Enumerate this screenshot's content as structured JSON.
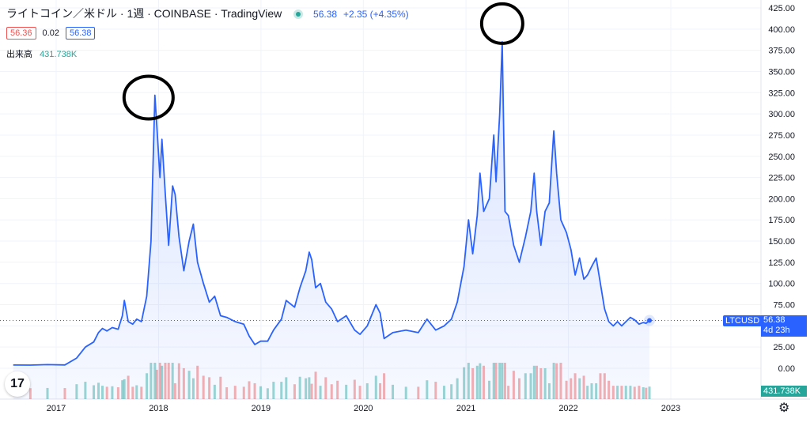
{
  "header": {
    "symbol_title": "ライトコイン／米ドル · 1週 · COINBASE · TradingView",
    "last_price": "56.38",
    "change": "+2.35 (+4.35%)"
  },
  "quote": {
    "bid": "56.36",
    "spread": "0.02",
    "ask": "56.38"
  },
  "volume_legend": {
    "label": "出来高",
    "value": "431.738K"
  },
  "price_tag": {
    "symbol": "LTCUSD",
    "price": "56.38",
    "countdown": "4d 23h"
  },
  "volume_tag": "431.738K",
  "icons": {
    "logo": "tradingview-logo-icon",
    "settings": "gear-icon",
    "live": "live-dot-icon"
  },
  "colors": {
    "line": "#2962ff",
    "area": "#e8edfb",
    "up": "#26a69a",
    "down": "#ef5350"
  },
  "chart_data": {
    "type": "area",
    "title": "",
    "xlabel": "",
    "ylabel": "",
    "x_tick_labels": [
      "2017",
      "2018",
      "2019",
      "2020",
      "2021",
      "2022",
      "2023"
    ],
    "y_tick_labels": [
      "0.00",
      "25.00",
      "50.00",
      "75.00",
      "100.00",
      "125.00",
      "150.00",
      "175.00",
      "200.00",
      "225.00",
      "250.00",
      "275.00",
      "300.00",
      "325.00",
      "350.00",
      "375.00",
      "400.00",
      "425.00"
    ],
    "ylim": [
      -5,
      430
    ],
    "grid": true,
    "series": [
      {
        "name": "LTCUSD",
        "points": [
          [
            "2016-08-01",
            3.8
          ],
          [
            "2016-10-01",
            3.7
          ],
          [
            "2016-12-01",
            4.3
          ],
          [
            "2017-02-01",
            3.9
          ],
          [
            "2017-03-15",
            12
          ],
          [
            "2017-04-15",
            25
          ],
          [
            "2017-05-15",
            31
          ],
          [
            "2017-06-01",
            42
          ],
          [
            "2017-06-15",
            47
          ],
          [
            "2017-07-01",
            44
          ],
          [
            "2017-07-20",
            48
          ],
          [
            "2017-08-10",
            46
          ],
          [
            "2017-08-25",
            62
          ],
          [
            "2017-09-01",
            80
          ],
          [
            "2017-09-15",
            55
          ],
          [
            "2017-10-01",
            52
          ],
          [
            "2017-10-15",
            58
          ],
          [
            "2017-11-01",
            55
          ],
          [
            "2017-11-20",
            85
          ],
          [
            "2017-12-05",
            150
          ],
          [
            "2017-12-19",
            322
          ],
          [
            "2017-12-26",
            285
          ],
          [
            "2018-01-06",
            225
          ],
          [
            "2018-01-13",
            270
          ],
          [
            "2018-01-25",
            205
          ],
          [
            "2018-02-06",
            145
          ],
          [
            "2018-02-20",
            215
          ],
          [
            "2018-03-01",
            205
          ],
          [
            "2018-03-15",
            155
          ],
          [
            "2018-04-01",
            115
          ],
          [
            "2018-04-20",
            150
          ],
          [
            "2018-05-05",
            170
          ],
          [
            "2018-05-20",
            125
          ],
          [
            "2018-06-10",
            100
          ],
          [
            "2018-07-01",
            78
          ],
          [
            "2018-07-20",
            85
          ],
          [
            "2018-08-10",
            62
          ],
          [
            "2018-09-01",
            60
          ],
          [
            "2018-10-01",
            55
          ],
          [
            "2018-11-01",
            52
          ],
          [
            "2018-11-20",
            38
          ],
          [
            "2018-12-10",
            28
          ],
          [
            "2018-12-31",
            32
          ],
          [
            "2019-01-25",
            32
          ],
          [
            "2019-02-15",
            45
          ],
          [
            "2019-03-15",
            58
          ],
          [
            "2019-04-01",
            80
          ],
          [
            "2019-05-01",
            72
          ],
          [
            "2019-05-20",
            95
          ],
          [
            "2019-06-10",
            115
          ],
          [
            "2019-06-22",
            137
          ],
          [
            "2019-07-01",
            128
          ],
          [
            "2019-07-15",
            95
          ],
          [
            "2019-08-01",
            100
          ],
          [
            "2019-08-20",
            78
          ],
          [
            "2019-09-10",
            70
          ],
          [
            "2019-10-01",
            55
          ],
          [
            "2019-11-01",
            62
          ],
          [
            "2019-12-01",
            45
          ],
          [
            "2019-12-20",
            40
          ],
          [
            "2020-01-15",
            50
          ],
          [
            "2020-02-15",
            75
          ],
          [
            "2020-03-01",
            65
          ],
          [
            "2020-03-15",
            35
          ],
          [
            "2020-04-15",
            42
          ],
          [
            "2020-06-01",
            45
          ],
          [
            "2020-07-15",
            42
          ],
          [
            "2020-08-15",
            58
          ],
          [
            "2020-09-15",
            45
          ],
          [
            "2020-10-15",
            50
          ],
          [
            "2020-11-10",
            58
          ],
          [
            "2020-12-01",
            78
          ],
          [
            "2020-12-25",
            120
          ],
          [
            "2021-01-10",
            175
          ],
          [
            "2021-01-25",
            135
          ],
          [
            "2021-02-10",
            180
          ],
          [
            "2021-02-20",
            230
          ],
          [
            "2021-03-05",
            185
          ],
          [
            "2021-03-25",
            200
          ],
          [
            "2021-04-10",
            275
          ],
          [
            "2021-04-18",
            220
          ],
          [
            "2021-05-01",
            300
          ],
          [
            "2021-05-10",
            385
          ],
          [
            "2021-05-20",
            185
          ],
          [
            "2021-06-01",
            180
          ],
          [
            "2021-06-20",
            145
          ],
          [
            "2021-07-10",
            125
          ],
          [
            "2021-08-01",
            155
          ],
          [
            "2021-08-20",
            185
          ],
          [
            "2021-09-01",
            230
          ],
          [
            "2021-09-10",
            185
          ],
          [
            "2021-09-25",
            145
          ],
          [
            "2021-10-10",
            185
          ],
          [
            "2021-10-25",
            195
          ],
          [
            "2021-11-10",
            280
          ],
          [
            "2021-11-20",
            230
          ],
          [
            "2021-12-05",
            175
          ],
          [
            "2021-12-25",
            160
          ],
          [
            "2022-01-10",
            140
          ],
          [
            "2022-01-25",
            110
          ],
          [
            "2022-02-10",
            130
          ],
          [
            "2022-02-25",
            105
          ],
          [
            "2022-03-10",
            110
          ],
          [
            "2022-03-25",
            120
          ],
          [
            "2022-04-10",
            130
          ],
          [
            "2022-04-25",
            100
          ],
          [
            "2022-05-10",
            70
          ],
          [
            "2022-05-25",
            55
          ],
          [
            "2022-06-10",
            50
          ],
          [
            "2022-06-25",
            55
          ],
          [
            "2022-07-10",
            50
          ],
          [
            "2022-07-25",
            55
          ],
          [
            "2022-08-10",
            60
          ],
          [
            "2022-08-25",
            57
          ],
          [
            "2022-09-10",
            52
          ],
          [
            "2022-09-25",
            54
          ],
          [
            "2022-10-05",
            53
          ],
          [
            "2022-10-17",
            56.38
          ]
        ]
      }
    ],
    "annotations": [
      "circle at 2017-12-19 peak",
      "circle at 2021-05-10 peak"
    ],
    "current_price": 56.38
  }
}
